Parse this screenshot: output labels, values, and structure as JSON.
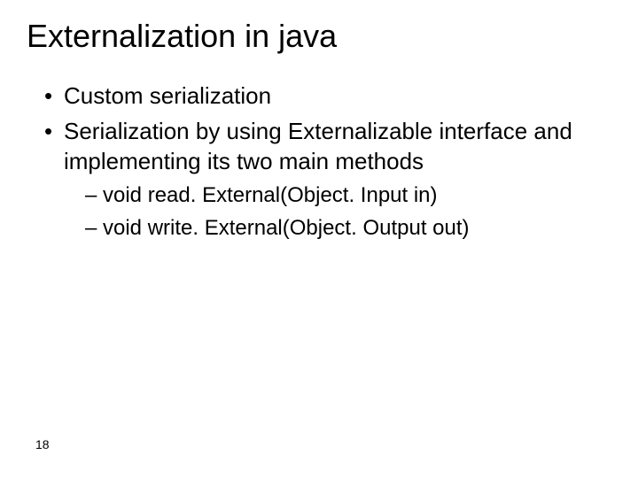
{
  "slide": {
    "title": "Externalization in java",
    "bullets_level1": [
      "Custom serialization",
      "Serialization by using Externalizable interface and implementing its two main methods"
    ],
    "bullets_level2": [
      "void read. External(Object. Input in)",
      "void write. External(Object. Output out)"
    ],
    "page_number": "18"
  },
  "styling": {
    "background_color": "#ffffff",
    "text_color": "#000000",
    "title_fontsize": 36,
    "level1_fontsize": 26,
    "level2_fontsize": 24,
    "pagenum_fontsize": 14,
    "font_family": "Arial"
  }
}
